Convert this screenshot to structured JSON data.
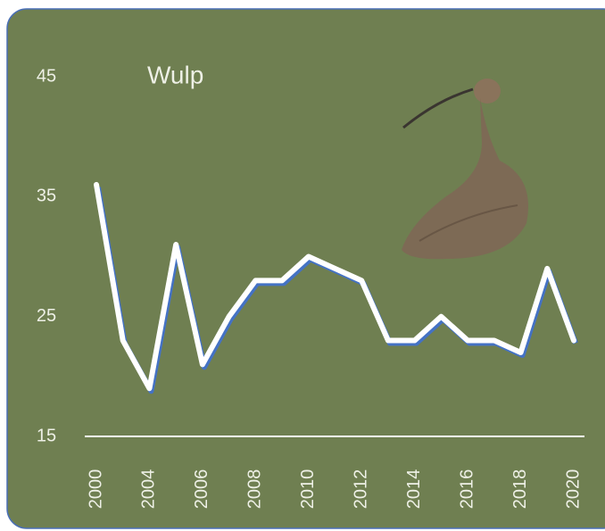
{
  "chart_data": {
    "type": "line",
    "title": "Wulp",
    "categories": [
      "2000",
      null,
      "2004",
      null,
      "2006",
      null,
      "2008",
      null,
      "2010",
      null,
      "2012",
      null,
      "2014",
      null,
      "2016",
      null,
      "2018",
      null,
      "2020"
    ],
    "values": [
      36,
      23,
      19,
      31,
      21,
      25,
      28,
      28,
      30,
      29,
      28,
      23,
      23,
      25,
      23,
      23,
      22,
      29,
      23
    ],
    "color": "#ffffff",
    "shadow_color": "#4472c4",
    "ylim": [
      15,
      45
    ],
    "yticks": [
      15,
      25,
      35,
      45
    ],
    "grid": false
  }
}
